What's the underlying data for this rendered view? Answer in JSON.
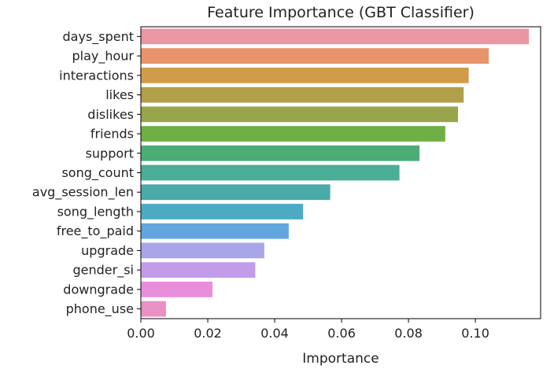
{
  "chart_data": {
    "type": "bar",
    "orientation": "horizontal",
    "title": "Feature Importance (GBT Classifier)",
    "xlabel": "Importance",
    "ylabel": "",
    "categories": [
      "days_spent",
      "play_hour",
      "interactions",
      "likes",
      "dislikes",
      "friends",
      "support",
      "song_count",
      "avg_session_len",
      "song_length",
      "free_to_paid",
      "upgrade",
      "gender_si",
      "downgrade",
      "phone_use"
    ],
    "values": [
      0.116,
      0.104,
      0.098,
      0.0965,
      0.0948,
      0.091,
      0.0833,
      0.0773,
      0.0566,
      0.0485,
      0.0442,
      0.0369,
      0.0342,
      0.0214,
      0.0075
    ],
    "colors": [
      "#ea96a3",
      "#e8936b",
      "#d09c4a",
      "#b0a04a",
      "#98a54a",
      "#6eb046",
      "#4bac75",
      "#4bae96",
      "#4aaaa8",
      "#4cabc2",
      "#63a6df",
      "#a8a6e9",
      "#c29ce9",
      "#e88fdc",
      "#e891c2"
    ],
    "xlim": [
      0,
      0.1195
    ],
    "xticks": [
      0,
      0.02,
      0.04,
      0.06,
      0.08,
      0.1
    ],
    "xtick_labels": [
      "0.00",
      "0.02",
      "0.04",
      "0.06",
      "0.08",
      "0.10"
    ],
    "grid": false,
    "legend": "none"
  }
}
